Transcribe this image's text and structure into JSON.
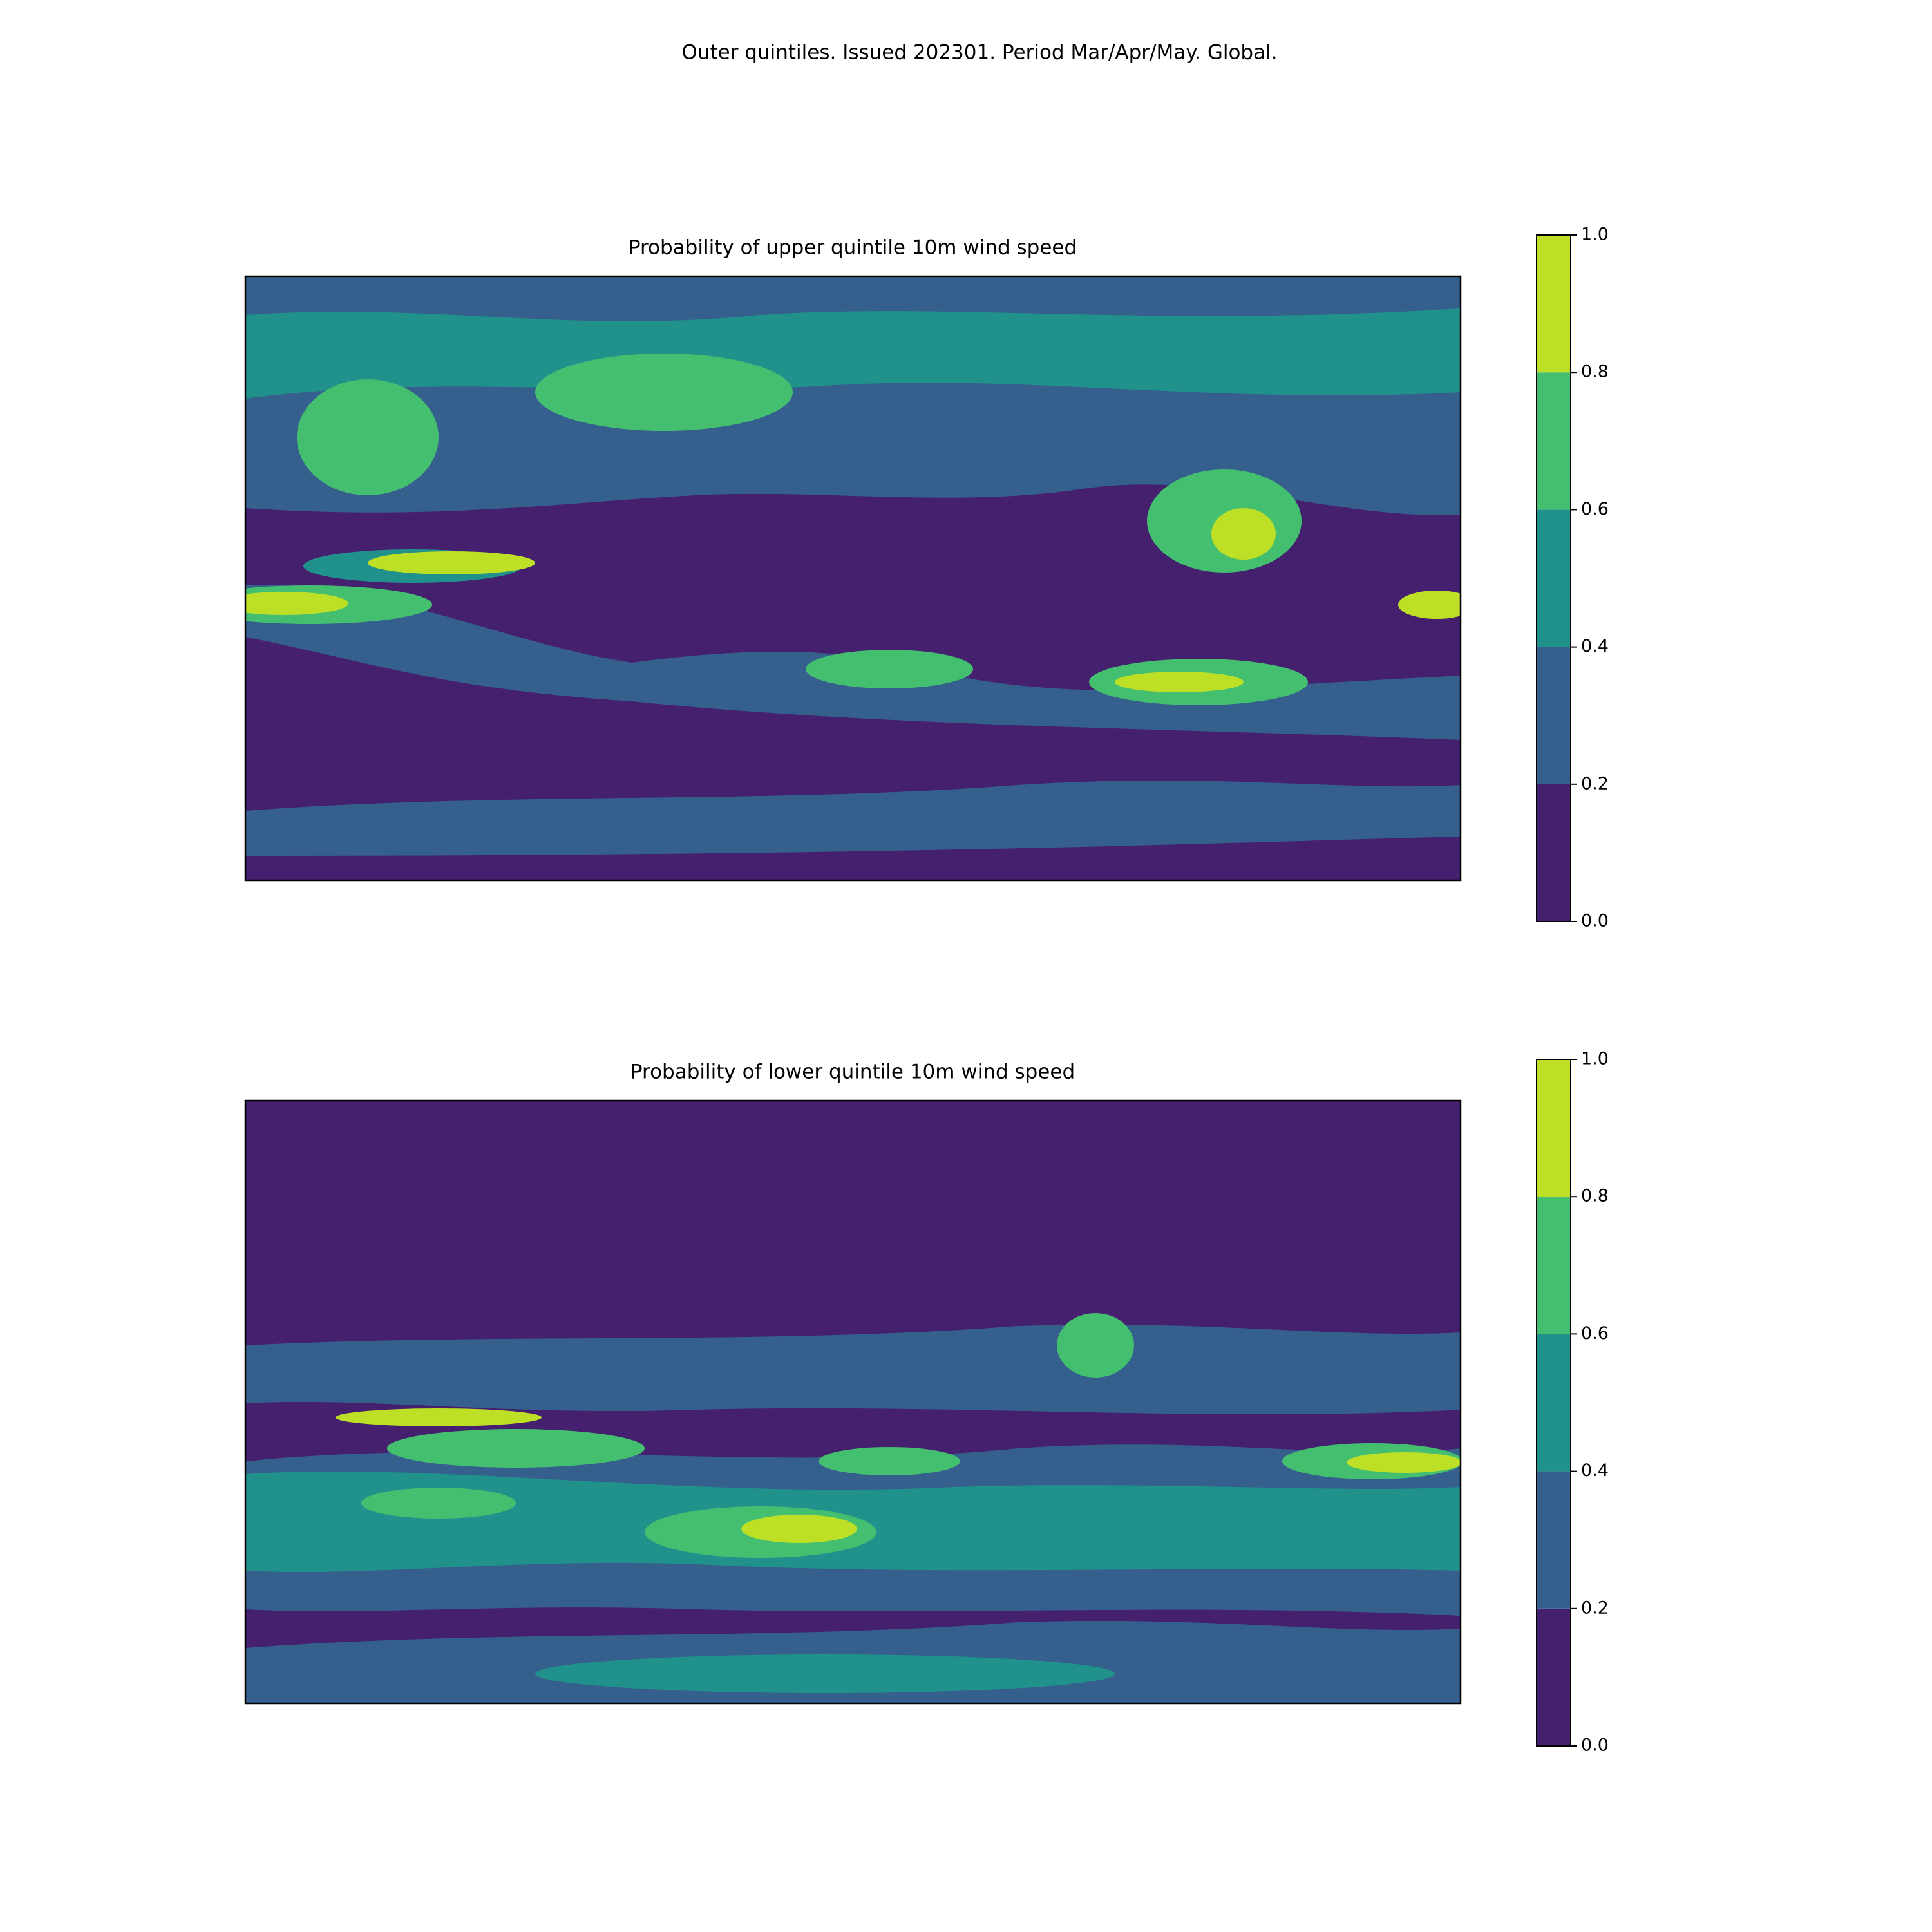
{
  "title": "Outer quintiles. Issued 202301. Period Mar/Apr/May. Global.",
  "chart_data": [
    {
      "type": "map",
      "title": "Probability of upper quintile 10m wind speed",
      "colorbar": {
        "ticks": [
          {
            "value": 0,
            "label": "0.0"
          },
          {
            "value": 0.2,
            "label": "0.2"
          },
          {
            "value": 0.4,
            "label": "0.4"
          },
          {
            "value": 0.6,
            "label": "0.6"
          },
          {
            "value": 0.8,
            "label": "0.8"
          },
          {
            "value": 1,
            "label": "1.0"
          }
        ],
        "colors": [
          "#45206f",
          "#355f8d",
          "#21918c",
          "#44bf70",
          "#bddf26"
        ]
      }
    },
    {
      "type": "map",
      "title": "Probability of lower quintile 10m wind speed",
      "colorbar": {
        "ticks": [
          {
            "value": 0,
            "label": "0.0"
          },
          {
            "value": 0.2,
            "label": "0.2"
          },
          {
            "value": 0.4,
            "label": "0.4"
          },
          {
            "value": 0.6,
            "label": "0.6"
          },
          {
            "value": 0.8,
            "label": "0.8"
          },
          {
            "value": 1,
            "label": "1.0"
          }
        ],
        "colors": [
          "#45206f",
          "#355f8d",
          "#21918c",
          "#44bf70",
          "#bddf26"
        ]
      }
    }
  ]
}
